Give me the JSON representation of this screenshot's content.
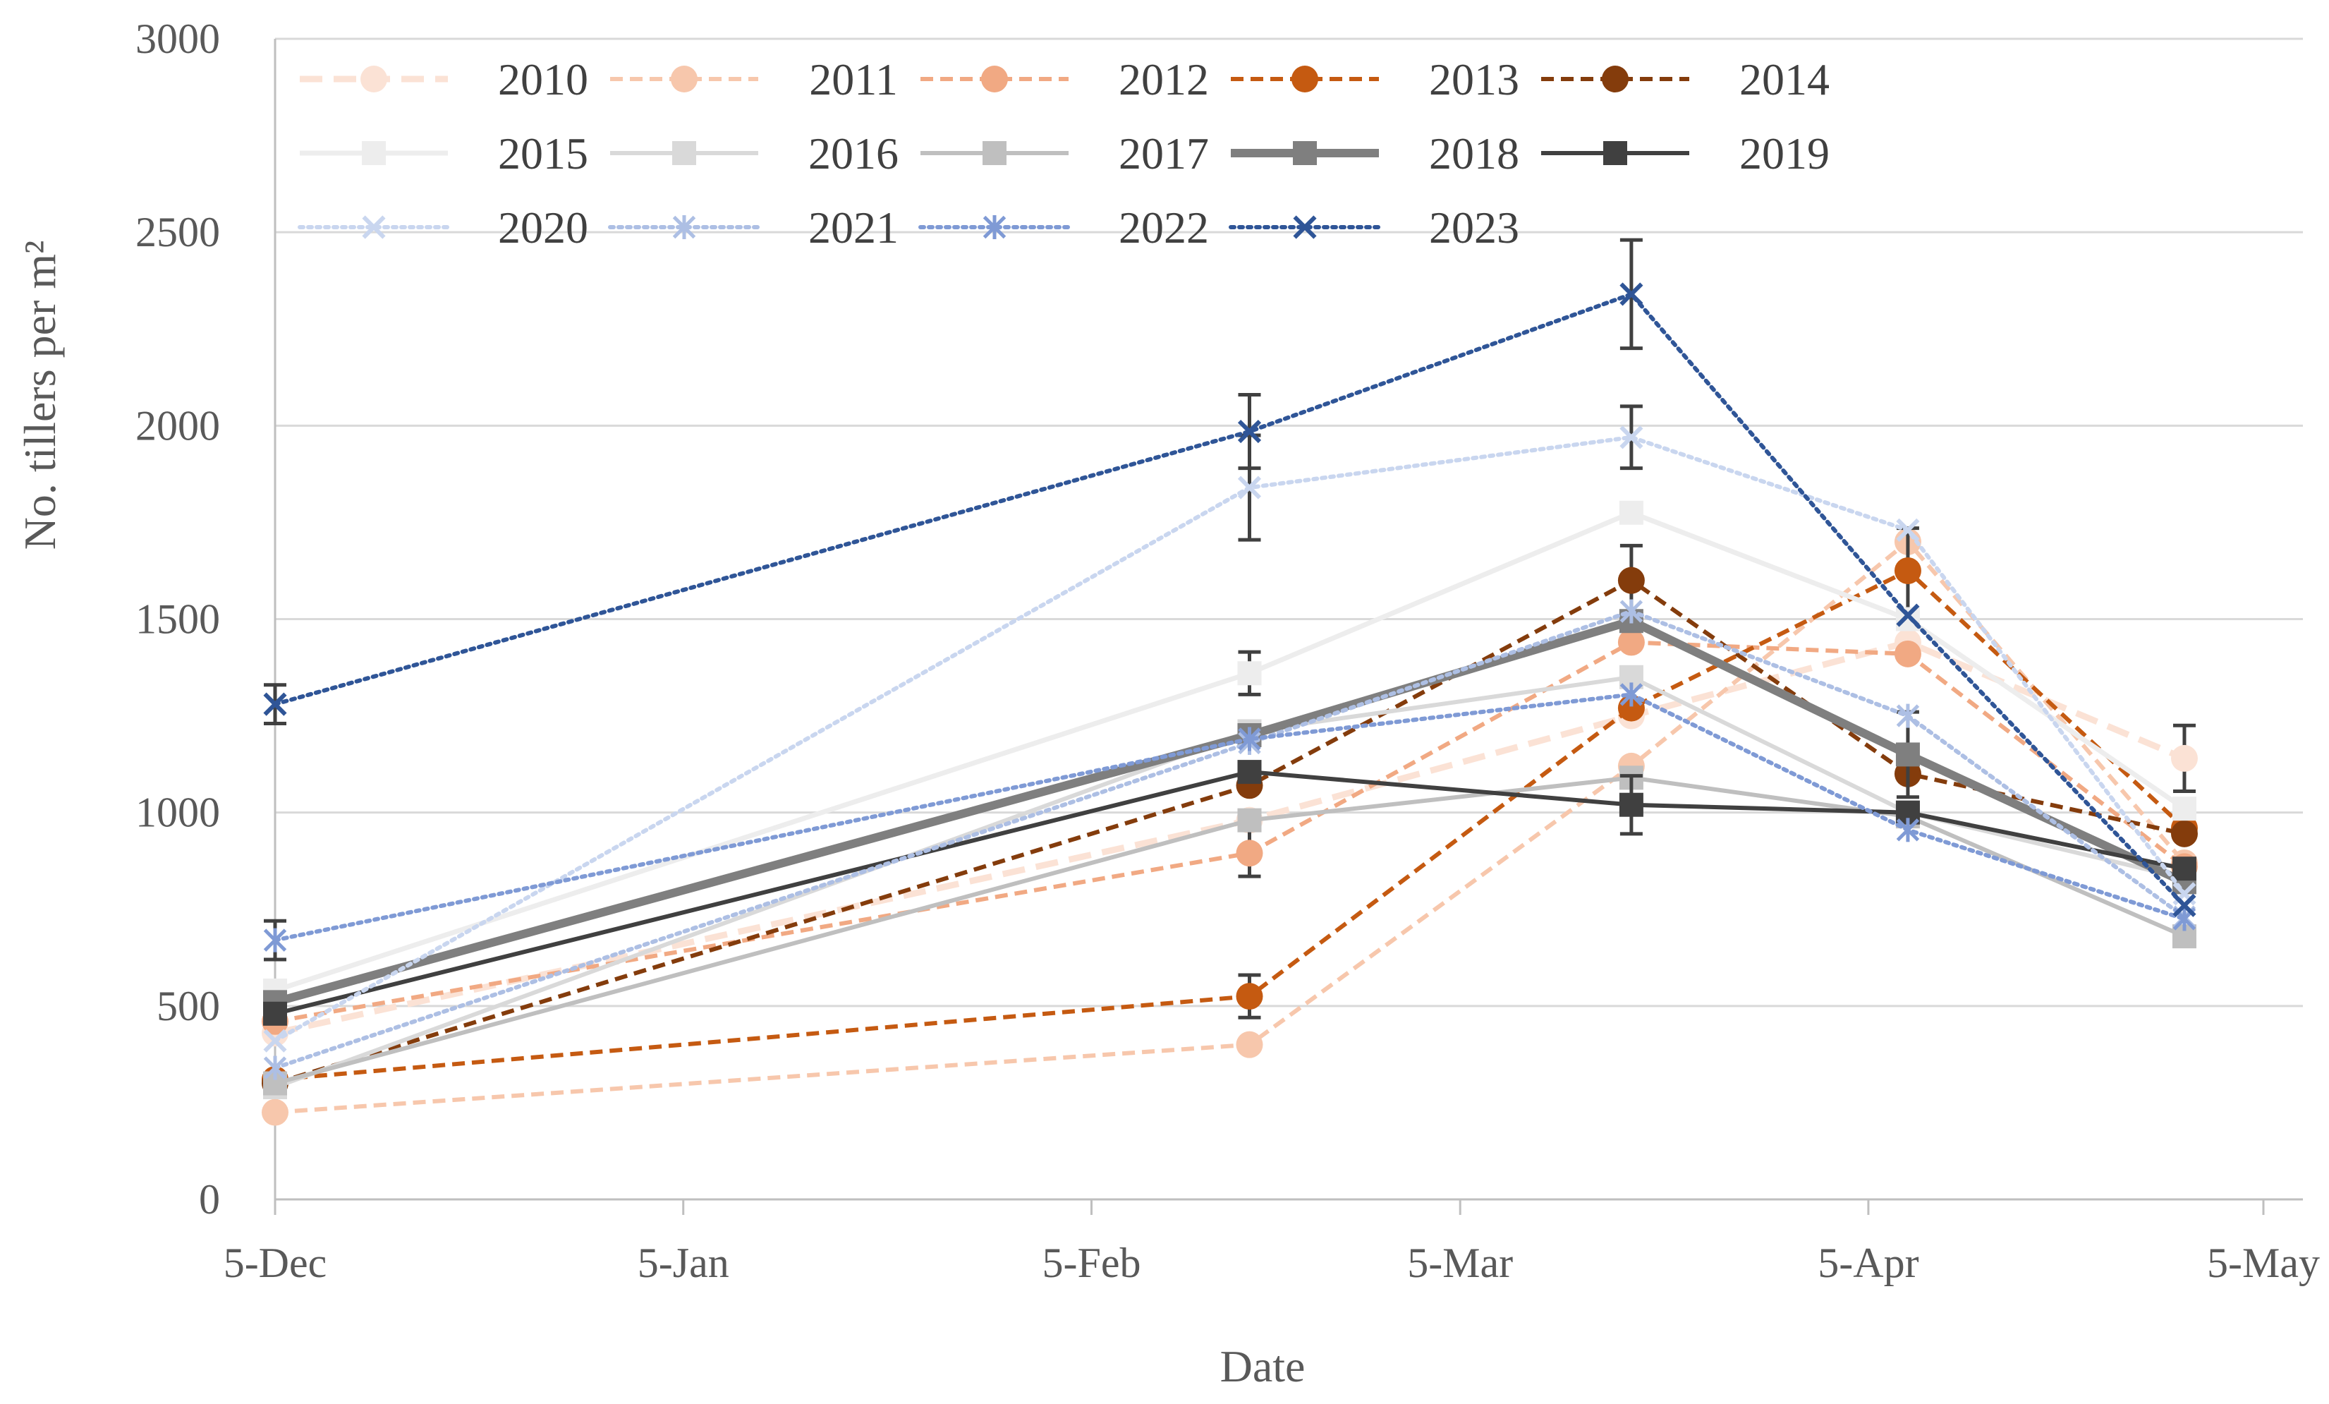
{
  "chart_data": {
    "type": "line",
    "title": "",
    "xlabel": "Date",
    "ylabel": "No. tillers per m²",
    "ylim": [
      0,
      3000
    ],
    "yticks": [
      0,
      500,
      1000,
      1500,
      2000,
      2500,
      3000
    ],
    "xlim_days": [
      0,
      154
    ],
    "xticks": [
      {
        "label": "5-Dec",
        "day": 0
      },
      {
        "label": "5-Jan",
        "day": 31
      },
      {
        "label": "5-Feb",
        "day": 62
      },
      {
        "label": "5-Mar",
        "day": 90
      },
      {
        "label": "5-Apr",
        "day": 121
      },
      {
        "label": "5-May",
        "day": 151
      }
    ],
    "grid": "horizontal",
    "legend_position": "top",
    "x_days": [
      0,
      74,
      103,
      124,
      145
    ],
    "series": [
      {
        "name": "2010",
        "color": "#fbe2d5",
        "dash": "long",
        "width": 9,
        "marker": "circle",
        "values": [
          430,
          980,
          1250,
          1440,
          1140
        ],
        "err": [
          0,
          0,
          0,
          0,
          85
        ]
      },
      {
        "name": "2011",
        "color": "#f7c7ac",
        "dash": "dash",
        "width": 6,
        "marker": "circle",
        "values": [
          225,
          400,
          1120,
          1700,
          870
        ],
        "err": [
          0,
          0,
          0,
          0,
          0
        ]
      },
      {
        "name": "2012",
        "color": "#f1a983",
        "dash": "dash",
        "width": 6,
        "marker": "circle",
        "values": [
          460,
          895,
          1440,
          1410,
          860
        ],
        "err": [
          0,
          60,
          0,
          0,
          0
        ]
      },
      {
        "name": "2013",
        "color": "#c55a11",
        "dash": "dash",
        "width": 6,
        "marker": "circle",
        "values": [
          310,
          525,
          1270,
          1625,
          960
        ],
        "err": [
          0,
          55,
          0,
          110,
          0
        ]
      },
      {
        "name": "2014",
        "color": "#843c0c",
        "dash": "dash",
        "width": 6,
        "marker": "circle",
        "values": [
          300,
          1070,
          1600,
          1100,
          945
        ],
        "err": [
          0,
          0,
          90,
          0,
          0
        ]
      },
      {
        "name": "2015",
        "color": "#ededed",
        "dash": "solid",
        "width": 7,
        "marker": "square",
        "values": [
          540,
          1360,
          1775,
          1500,
          1010
        ],
        "err": [
          0,
          55,
          0,
          0,
          0
        ]
      },
      {
        "name": "2016",
        "color": "#d9d9d9",
        "dash": "solid",
        "width": 6,
        "marker": "square",
        "values": [
          290,
          1210,
          1350,
          1000,
          830
        ],
        "err": [
          0,
          0,
          0,
          0,
          0
        ]
      },
      {
        "name": "2017",
        "color": "#bfbfbf",
        "dash": "solid",
        "width": 6,
        "marker": "square",
        "values": [
          300,
          980,
          1090,
          990,
          680
        ],
        "err": [
          0,
          0,
          0,
          0,
          0
        ]
      },
      {
        "name": "2018",
        "color": "#7f7f7f",
        "dash": "solid",
        "width": 12,
        "marker": "square",
        "values": [
          510,
          1200,
          1495,
          1150,
          820
        ],
        "err": [
          0,
          0,
          0,
          110,
          0
        ]
      },
      {
        "name": "2019",
        "color": "#404040",
        "dash": "solid",
        "width": 6,
        "marker": "square",
        "values": [
          480,
          1105,
          1020,
          1000,
          855
        ],
        "err": [
          0,
          0,
          75,
          0,
          0
        ]
      },
      {
        "name": "2020",
        "color": "#c9d6ef",
        "dash": "dot",
        "width": 6,
        "marker": "x",
        "values": [
          410,
          1840,
          1970,
          1730,
          790
        ],
        "err": [
          0,
          135,
          80,
          0,
          0
        ]
      },
      {
        "name": "2021",
        "color": "#adbfe4",
        "dash": "dot",
        "width": 6,
        "marker": "asterisk",
        "values": [
          340,
          1180,
          1520,
          1250,
          730
        ],
        "err": [
          0,
          0,
          0,
          0,
          0
        ]
      },
      {
        "name": "2022",
        "color": "#7f9ad5",
        "dash": "dot",
        "width": 6,
        "marker": "asterisk",
        "values": [
          670,
          1190,
          1305,
          955,
          725
        ],
        "err": [
          50,
          0,
          0,
          0,
          0
        ]
      },
      {
        "name": "2023",
        "color": "#2f5597",
        "dash": "dot",
        "width": 6,
        "marker": "x",
        "values": [
          1280,
          1985,
          2340,
          1510,
          760
        ],
        "err": [
          50,
          95,
          140,
          0,
          0
        ]
      }
    ]
  }
}
